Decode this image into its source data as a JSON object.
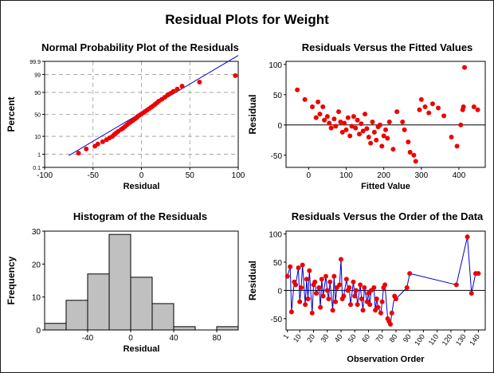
{
  "title": "Residual Plots for Weight",
  "colors": {
    "points": "#ee0000",
    "lines": "#0000cc",
    "bars": "#c0c0c0"
  },
  "chart_data": [
    {
      "type": "scatter",
      "title": "Normal Probability Plot of the Residuals",
      "xlabel": "Residual",
      "ylabel": "Percent",
      "xlim": [
        -100,
        100
      ],
      "xticks": [
        -100,
        -50,
        0,
        50,
        100
      ],
      "yticks": [
        0.1,
        1,
        10,
        50,
        90,
        99,
        99.9
      ],
      "ytick_labels": [
        "0.1",
        "1",
        "10",
        "50",
        "90",
        "99",
        "99.9"
      ],
      "grid": true,
      "fit_line": {
        "x1": -75,
        "x2": 100
      },
      "points": [
        [
          -65,
          1.2
        ],
        [
          -57,
          2.2
        ],
        [
          -48,
          3.2
        ],
        [
          -45,
          4.2
        ],
        [
          -40,
          5.5
        ],
        [
          -36,
          7
        ],
        [
          -33,
          8.5
        ],
        [
          -30,
          10
        ],
        [
          -28,
          12
        ],
        [
          -26,
          14
        ],
        [
          -24,
          16
        ],
        [
          -21,
          19
        ],
        [
          -19,
          21
        ],
        [
          -17,
          24
        ],
        [
          -15,
          27
        ],
        [
          -13,
          30
        ],
        [
          -11,
          33
        ],
        [
          -9,
          36
        ],
        [
          -7,
          39
        ],
        [
          -5,
          42
        ],
        [
          -4,
          45
        ],
        [
          -2,
          48
        ],
        [
          0,
          51
        ],
        [
          2,
          54
        ],
        [
          4,
          57
        ],
        [
          6,
          60
        ],
        [
          8,
          63
        ],
        [
          10,
          66
        ],
        [
          12,
          69
        ],
        [
          14,
          72
        ],
        [
          16,
          75
        ],
        [
          18,
          78
        ],
        [
          21,
          81
        ],
        [
          24,
          84
        ],
        [
          27,
          87
        ],
        [
          30,
          89
        ],
        [
          33,
          91
        ],
        [
          37,
          93
        ],
        [
          42,
          95
        ],
        [
          60,
          97
        ],
        [
          97,
          98.8
        ]
      ]
    },
    {
      "type": "scatter",
      "title": "Residuals Versus the Fitted Values",
      "xlabel": "Fitted Value",
      "ylabel": "Residual",
      "xlim": [
        -60,
        470
      ],
      "ylim": [
        -70,
        105
      ],
      "xticks": [
        0,
        100,
        200,
        300,
        400
      ],
      "yticks": [
        -50,
        0,
        50,
        100
      ],
      "points": [
        [
          -30,
          58
        ],
        [
          -10,
          42
        ],
        [
          10,
          30
        ],
        [
          20,
          12
        ],
        [
          25,
          38
        ],
        [
          30,
          18
        ],
        [
          38,
          30
        ],
        [
          42,
          8
        ],
        [
          50,
          14
        ],
        [
          55,
          3
        ],
        [
          60,
          -5
        ],
        [
          68,
          10
        ],
        [
          72,
          -2
        ],
        [
          80,
          22
        ],
        [
          85,
          5
        ],
        [
          90,
          -12
        ],
        [
          95,
          3
        ],
        [
          100,
          -8
        ],
        [
          105,
          12
        ],
        [
          110,
          -18
        ],
        [
          115,
          -2
        ],
        [
          120,
          14
        ],
        [
          125,
          -5
        ],
        [
          130,
          8
        ],
        [
          135,
          -15
        ],
        [
          140,
          2
        ],
        [
          145,
          -10
        ],
        [
          150,
          18
        ],
        [
          155,
          -6
        ],
        [
          160,
          -20
        ],
        [
          165,
          -30
        ],
        [
          170,
          5
        ],
        [
          175,
          -12
        ],
        [
          180,
          -25
        ],
        [
          185,
          -3
        ],
        [
          190,
          0
        ],
        [
          195,
          -35
        ],
        [
          200,
          -18
        ],
        [
          205,
          -8
        ],
        [
          210,
          -22
        ],
        [
          215,
          5
        ],
        [
          225,
          -40
        ],
        [
          235,
          22
        ],
        [
          250,
          5
        ],
        [
          255,
          -8
        ],
        [
          265,
          -28
        ],
        [
          270,
          -45
        ],
        [
          280,
          -50
        ],
        [
          285,
          -60
        ],
        [
          295,
          25
        ],
        [
          300,
          42
        ],
        [
          310,
          30
        ],
        [
          320,
          20
        ],
        [
          330,
          35
        ],
        [
          345,
          28
        ],
        [
          360,
          15
        ],
        [
          380,
          -20
        ],
        [
          395,
          -35
        ],
        [
          405,
          0
        ],
        [
          410,
          25
        ],
        [
          412,
          30
        ],
        [
          415,
          95
        ],
        [
          440,
          30
        ],
        [
          450,
          25
        ]
      ]
    },
    {
      "type": "bar",
      "title": "Histogram of the Residuals",
      "xlabel": "Residual",
      "ylabel": "Frequency",
      "bin_width": 20,
      "bin_starts": [
        -80,
        -60,
        -40,
        -20,
        0,
        20,
        40,
        60,
        80
      ],
      "values": [
        2,
        9,
        17,
        29,
        16,
        8,
        1,
        0,
        1
      ],
      "xlim": [
        -80,
        100
      ],
      "ylim": [
        0,
        30
      ],
      "xticks": [
        -40,
        0,
        40,
        80
      ],
      "yticks": [
        0,
        10,
        20,
        30
      ]
    },
    {
      "type": "line",
      "title": "Residuals Versus the Order of the Data",
      "xlabel": "Observation Order",
      "ylabel": "Residual",
      "xlim": [
        0,
        145
      ],
      "ylim": [
        -70,
        105
      ],
      "xticks": [
        1,
        10,
        20,
        30,
        40,
        50,
        60,
        70,
        80,
        90,
        100,
        110,
        120,
        130,
        140
      ],
      "yticks": [
        -50,
        0,
        50,
        100
      ],
      "x": [
        1,
        3,
        4,
        6,
        7,
        9,
        10,
        11,
        12,
        14,
        15,
        16,
        17,
        19,
        20,
        21,
        22,
        24,
        25,
        26,
        27,
        29,
        30,
        31,
        32,
        34,
        35,
        36,
        37,
        39,
        40,
        41,
        42,
        44,
        45,
        46,
        47,
        49,
        50,
        51,
        52,
        54,
        55,
        56,
        57,
        59,
        60,
        61,
        62,
        64,
        65,
        66,
        67,
        69,
        70,
        71,
        72,
        74,
        75,
        76,
        77,
        79,
        80,
        88,
        90,
        124,
        132,
        135,
        138,
        140
      ],
      "y": [
        25,
        42,
        -38,
        15,
        10,
        40,
        -20,
        5,
        45,
        -25,
        20,
        -15,
        35,
        -40,
        10,
        15,
        -5,
        5,
        -30,
        20,
        -10,
        25,
        0,
        -15,
        15,
        -35,
        25,
        -20,
        5,
        10,
        55,
        -15,
        -10,
        20,
        0,
        5,
        -25,
        15,
        -10,
        0,
        -25,
        10,
        -15,
        -35,
        5,
        -20,
        -5,
        -25,
        0,
        5,
        -35,
        -15,
        -30,
        -40,
        -20,
        5,
        10,
        -50,
        -55,
        -60,
        -40,
        -10,
        -15,
        5,
        30,
        10,
        95,
        -5,
        30,
        30
      ]
    }
  ]
}
